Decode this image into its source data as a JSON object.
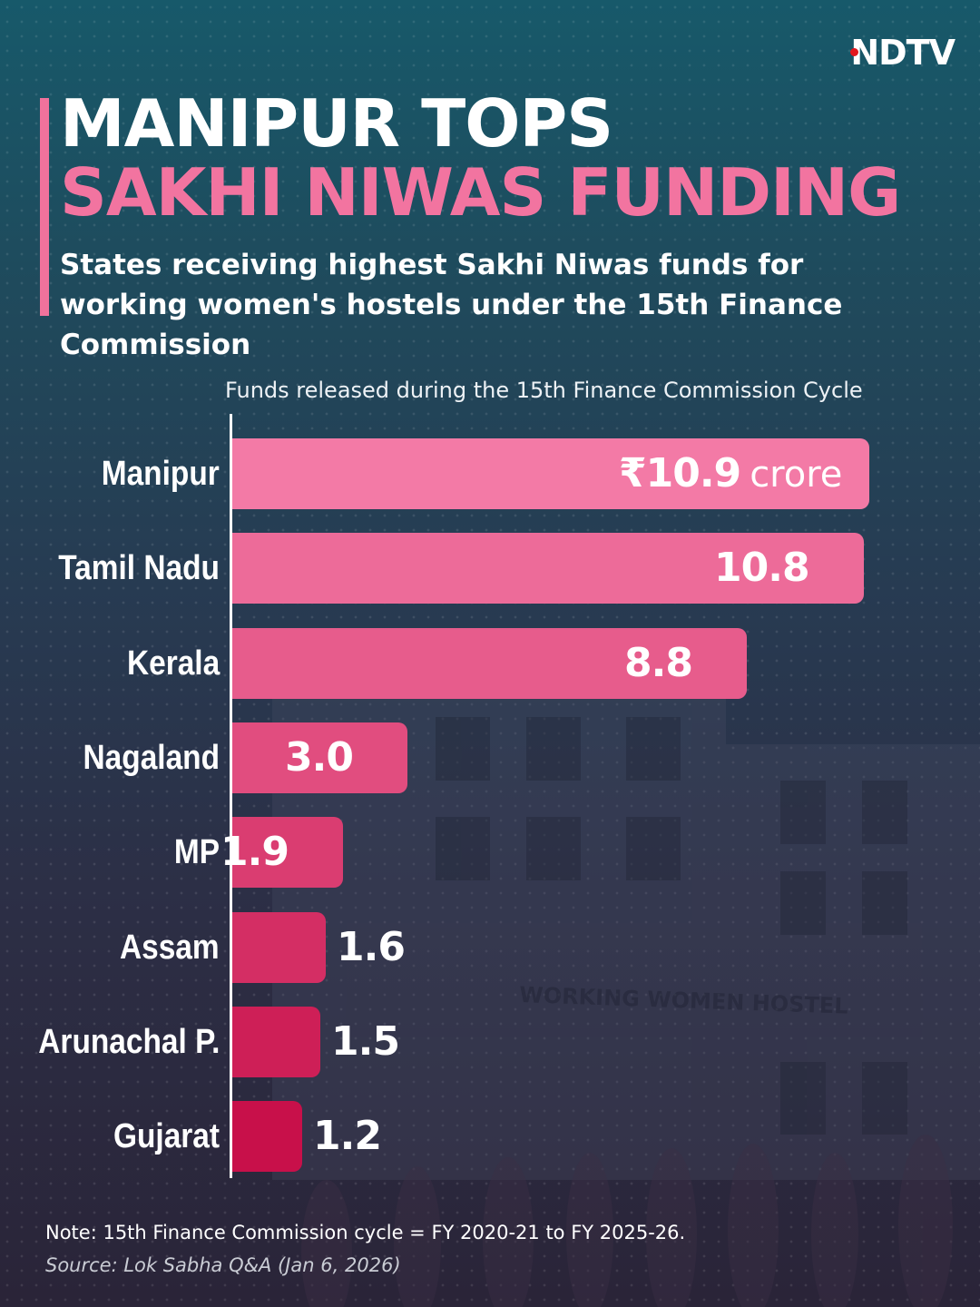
{
  "brand": {
    "logo_text": "NDTV"
  },
  "header": {
    "title_line1": "MANIPUR TOPS",
    "title_line2": "SAKHI NIWAS FUNDING",
    "subtitle": "States receiving highest Sakhi Niwas funds for working women's hostels under the 15th Finance Commission"
  },
  "background": {
    "sign_text": "WORKING WOMEN HOSTEL"
  },
  "colors": {
    "accent_pink": "#f274a0",
    "bar_top": "#f37aa6",
    "bar_bottom": "#c8104a",
    "logo_dot": "#e3161c"
  },
  "chart_data": {
    "type": "bar",
    "orientation": "horizontal",
    "title": "Funds released during the 15th Finance Commission Cycle",
    "categories": [
      "Manipur",
      "Tamil Nadu",
      "Kerala",
      "Nagaland",
      "MP",
      "Assam",
      "Arunachal P.",
      "Gujarat"
    ],
    "values": [
      10.9,
      10.8,
      8.8,
      3.0,
      1.9,
      1.6,
      1.5,
      1.2
    ],
    "value_labels": [
      "₹10.9",
      "10.8",
      "8.8",
      "3.0",
      "1.9",
      "1.6",
      "1.5",
      "1.2"
    ],
    "first_label_unit": "crore",
    "currency": "₹",
    "unit": "crore",
    "xlim": [
      0,
      10.9
    ],
    "grid": false,
    "legend": "none"
  },
  "footer": {
    "note": "Note: 15th Finance Commission cycle = FY 2020-21 to FY 2025-26.",
    "source": "Source: Lok Sabha Q&A (Jan 6, 2026)"
  }
}
